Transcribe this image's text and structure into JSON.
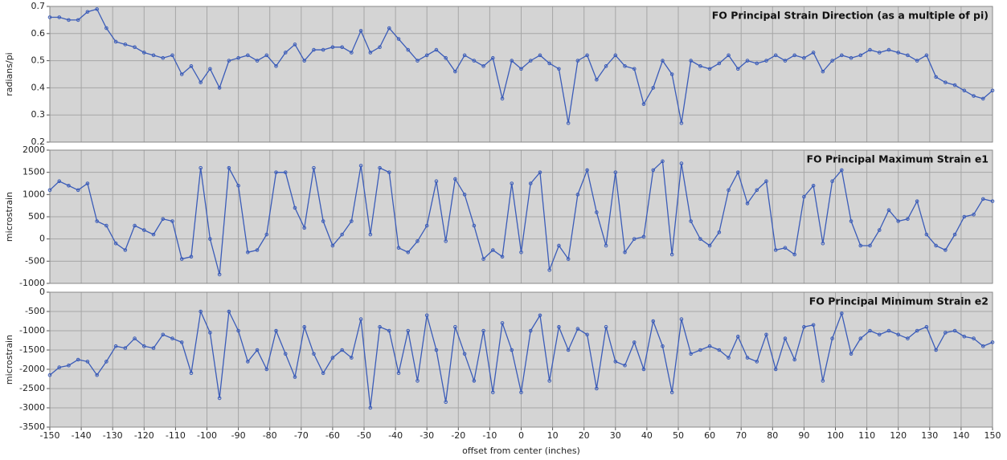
{
  "chart_data": [
    {
      "type": "line",
      "title": "FO Principal Strain Direction (as a multiple of pi)",
      "ylabel": "radians/pi",
      "ylim": [
        0.2,
        0.7
      ],
      "yticks": [
        0.2,
        0.3,
        0.4,
        0.5,
        0.6,
        0.7
      ],
      "xlim": [
        -150,
        150
      ],
      "xticks": [
        -150,
        -140,
        -130,
        -120,
        -110,
        -100,
        -90,
        -80,
        -70,
        -60,
        -50,
        -40,
        -30,
        -20,
        -10,
        0,
        10,
        20,
        30,
        40,
        50,
        60,
        70,
        80,
        90,
        100,
        110,
        120,
        130,
        140,
        150
      ],
      "grid": true,
      "x": [
        -150,
        -147,
        -144,
        -141,
        -138,
        -135,
        -132,
        -129,
        -126,
        -123,
        -120,
        -117,
        -114,
        -111,
        -108,
        -105,
        -102,
        -99,
        -96,
        -93,
        -90,
        -87,
        -84,
        -81,
        -78,
        -75,
        -72,
        -69,
        -66,
        -63,
        -60,
        -57,
        -54,
        -51,
        -48,
        -45,
        -42,
        -39,
        -36,
        -33,
        -30,
        -27,
        -24,
        -21,
        -18,
        -15,
        -12,
        -9,
        -6,
        -3,
        0,
        3,
        6,
        9,
        12,
        15,
        18,
        21,
        24,
        27,
        30,
        33,
        36,
        39,
        42,
        45,
        48,
        51,
        54,
        57,
        60,
        63,
        66,
        69,
        72,
        75,
        78,
        81,
        84,
        87,
        90,
        93,
        96,
        99,
        102,
        105,
        108,
        111,
        114,
        117,
        120,
        123,
        126,
        129,
        132,
        135,
        138,
        141,
        144,
        147,
        150
      ],
      "series": [
        {
          "color": "#3b5cb8",
          "values": [
            0.66,
            0.66,
            0.65,
            0.65,
            0.68,
            0.69,
            0.62,
            0.57,
            0.56,
            0.55,
            0.53,
            0.52,
            0.51,
            0.52,
            0.45,
            0.48,
            0.42,
            0.47,
            0.4,
            0.5,
            0.51,
            0.52,
            0.5,
            0.52,
            0.48,
            0.53,
            0.56,
            0.5,
            0.54,
            0.54,
            0.55,
            0.55,
            0.53,
            0.61,
            0.53,
            0.55,
            0.62,
            0.58,
            0.54,
            0.5,
            0.52,
            0.54,
            0.51,
            0.46,
            0.52,
            0.5,
            0.48,
            0.51,
            0.36,
            0.5,
            0.47,
            0.5,
            0.52,
            0.49,
            0.47,
            0.27,
            0.5,
            0.52,
            0.43,
            0.48,
            0.52,
            0.48,
            0.47,
            0.34,
            0.4,
            0.5,
            0.45,
            0.27,
            0.5,
            0.48,
            0.47,
            0.49,
            0.52,
            0.47,
            0.5,
            0.49,
            0.5,
            0.52,
            0.5,
            0.52,
            0.51,
            0.53,
            0.46,
            0.5,
            0.52,
            0.51,
            0.52,
            0.54,
            0.53,
            0.54,
            0.53,
            0.52,
            0.5,
            0.52,
            0.44,
            0.42,
            0.41,
            0.39,
            0.37,
            0.36,
            0.39
          ]
        }
      ]
    },
    {
      "type": "line",
      "title": "FO Principal Maximum Strain e1",
      "ylabel": "microstrain",
      "ylim": [
        -1000,
        2000
      ],
      "yticks": [
        -1000,
        -500,
        0,
        500,
        1000,
        1500,
        2000
      ],
      "xlim": [
        -150,
        150
      ],
      "xticks": [
        -150,
        -140,
        -130,
        -120,
        -110,
        -100,
        -90,
        -80,
        -70,
        -60,
        -50,
        -40,
        -30,
        -20,
        -10,
        0,
        10,
        20,
        30,
        40,
        50,
        60,
        70,
        80,
        90,
        100,
        110,
        120,
        130,
        140,
        150
      ],
      "grid": true,
      "x": [
        -150,
        -147,
        -144,
        -141,
        -138,
        -135,
        -132,
        -129,
        -126,
        -123,
        -120,
        -117,
        -114,
        -111,
        -108,
        -105,
        -102,
        -99,
        -96,
        -93,
        -90,
        -87,
        -84,
        -81,
        -78,
        -75,
        -72,
        -69,
        -66,
        -63,
        -60,
        -57,
        -54,
        -51,
        -48,
        -45,
        -42,
        -39,
        -36,
        -33,
        -30,
        -27,
        -24,
        -21,
        -18,
        -15,
        -12,
        -9,
        -6,
        -3,
        0,
        3,
        6,
        9,
        12,
        15,
        18,
        21,
        24,
        27,
        30,
        33,
        36,
        39,
        42,
        45,
        48,
        51,
        54,
        57,
        60,
        63,
        66,
        69,
        72,
        75,
        78,
        81,
        84,
        87,
        90,
        93,
        96,
        99,
        102,
        105,
        108,
        111,
        114,
        117,
        120,
        123,
        126,
        129,
        132,
        135,
        138,
        141,
        144,
        147,
        150
      ],
      "series": [
        {
          "color": "#3b5cb8",
          "values": [
            1100,
            1300,
            1200,
            1100,
            1250,
            400,
            300,
            -100,
            -250,
            300,
            200,
            100,
            450,
            400,
            -450,
            -400,
            1600,
            0,
            -800,
            1600,
            1200,
            -300,
            -250,
            100,
            1500,
            1500,
            700,
            250,
            1600,
            400,
            -150,
            100,
            400,
            1650,
            100,
            1600,
            1500,
            -200,
            -300,
            -50,
            300,
            1300,
            -50,
            1350,
            1000,
            300,
            -450,
            -250,
            -400,
            1250,
            -300,
            1250,
            1500,
            -700,
            -150,
            -450,
            1000,
            1550,
            600,
            -150,
            1500,
            -300,
            0,
            50,
            1550,
            1750,
            -350,
            1700,
            400,
            0,
            -150,
            150,
            1100,
            1500,
            800,
            1100,
            1300,
            -250,
            -200,
            -350,
            950,
            1200,
            -100,
            1300,
            1550,
            400,
            -150,
            -150,
            200,
            650,
            400,
            450,
            850,
            100,
            -150,
            -250,
            100,
            500,
            550,
            900,
            850
          ]
        }
      ]
    },
    {
      "type": "line",
      "title": "FO Principal Minimum Strain e2",
      "ylabel": "microstrain",
      "xlabel": "offset from center (inches)",
      "ylim": [
        -3500,
        0
      ],
      "yticks": [
        -3500,
        -3000,
        -2500,
        -2000,
        -1500,
        -1000,
        -500,
        0
      ],
      "xlim": [
        -150,
        150
      ],
      "xticks": [
        -150,
        -140,
        -130,
        -120,
        -110,
        -100,
        -90,
        -80,
        -70,
        -60,
        -50,
        -40,
        -30,
        -20,
        -10,
        0,
        10,
        20,
        30,
        40,
        50,
        60,
        70,
        80,
        90,
        100,
        110,
        120,
        130,
        140,
        150
      ],
      "grid": true,
      "x": [
        -150,
        -147,
        -144,
        -141,
        -138,
        -135,
        -132,
        -129,
        -126,
        -123,
        -120,
        -117,
        -114,
        -111,
        -108,
        -105,
        -102,
        -99,
        -96,
        -93,
        -90,
        -87,
        -84,
        -81,
        -78,
        -75,
        -72,
        -69,
        -66,
        -63,
        -60,
        -57,
        -54,
        -51,
        -48,
        -45,
        -42,
        -39,
        -36,
        -33,
        -30,
        -27,
        -24,
        -21,
        -18,
        -15,
        -12,
        -9,
        -6,
        -3,
        0,
        3,
        6,
        9,
        12,
        15,
        18,
        21,
        24,
        27,
        30,
        33,
        36,
        39,
        42,
        45,
        48,
        51,
        54,
        57,
        60,
        63,
        66,
        69,
        72,
        75,
        78,
        81,
        84,
        87,
        90,
        93,
        96,
        99,
        102,
        105,
        108,
        111,
        114,
        117,
        120,
        123,
        126,
        129,
        132,
        135,
        138,
        141,
        144,
        147,
        150
      ],
      "series": [
        {
          "color": "#3b5cb8",
          "values": [
            -2150,
            -1950,
            -1900,
            -1750,
            -1800,
            -2150,
            -1800,
            -1400,
            -1450,
            -1200,
            -1400,
            -1450,
            -1100,
            -1200,
            -1300,
            -2100,
            -500,
            -1050,
            -2750,
            -500,
            -1000,
            -1800,
            -1500,
            -2000,
            -1000,
            -1600,
            -2200,
            -900,
            -1600,
            -2100,
            -1700,
            -1500,
            -1700,
            -700,
            -3000,
            -900,
            -1000,
            -2100,
            -1000,
            -2300,
            -600,
            -1500,
            -2850,
            -900,
            -1600,
            -2300,
            -1000,
            -2600,
            -800,
            -1500,
            -2600,
            -1000,
            -600,
            -2300,
            -900,
            -1500,
            -950,
            -1100,
            -2500,
            -900,
            -1800,
            -1900,
            -1300,
            -2000,
            -750,
            -1400,
            -2600,
            -700,
            -1600,
            -1500,
            -1400,
            -1500,
            -1700,
            -1150,
            -1700,
            -1800,
            -1100,
            -2000,
            -1200,
            -1750,
            -900,
            -850,
            -2300,
            -1200,
            -550,
            -1600,
            -1200,
            -1000,
            -1100,
            -1000,
            -1100,
            -1200,
            -1000,
            -900,
            -1500,
            -1050,
            -1000,
            -1150,
            -1200,
            -1400,
            -1300
          ]
        }
      ]
    }
  ]
}
